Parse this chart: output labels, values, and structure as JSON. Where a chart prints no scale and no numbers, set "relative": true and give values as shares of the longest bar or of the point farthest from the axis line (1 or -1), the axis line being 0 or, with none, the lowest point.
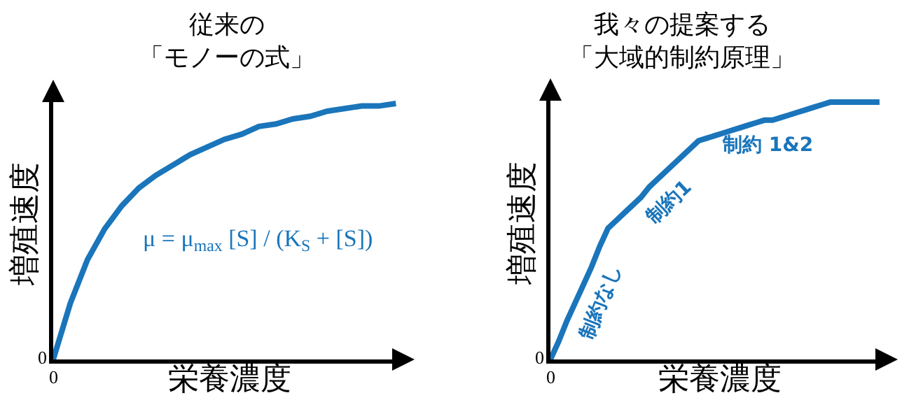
{
  "chart_data": [
    {
      "type": "line",
      "relative": true,
      "title": "従来の「モノーの式」",
      "xlabel": "栄養濃度",
      "ylabel": "増殖速度",
      "color": "#1a75bb",
      "categories": [
        null,
        null,
        null,
        null,
        null,
        null,
        null,
        null,
        null,
        null,
        null,
        null,
        null,
        null,
        null,
        null,
        null,
        null,
        null,
        null,
        null
      ],
      "values": [
        0,
        0.22,
        0.39,
        0.51,
        0.6,
        0.67,
        0.72,
        0.76,
        0.8,
        0.83,
        0.86,
        0.88,
        0.91,
        0.92,
        0.94,
        0.95,
        0.97,
        0.98,
        0.99,
        0.99,
        1.0
      ],
      "annotations": [
        "0",
        "0",
        "μ = μ$_{max}$ [S] / (K$_{S}$ + [S])"
      ]
    },
    {
      "type": "line",
      "relative": true,
      "title": "我々の提案する「大域的制約原理」",
      "xlabel": "栄養濃度",
      "ylabel": "増殖速度",
      "color": "#1a75bb",
      "categories": [
        null,
        null,
        null,
        null,
        null,
        null,
        null,
        null,
        null,
        null,
        null,
        null,
        null,
        null,
        null,
        null,
        null,
        null,
        null,
        null,
        null,
        null,
        null,
        null,
        null,
        null,
        null,
        null,
        null,
        null,
        null,
        null,
        null,
        null,
        null,
        null,
        null,
        null,
        null,
        null,
        null
      ],
      "values": [
        0,
        0.07,
        0.15,
        0.22,
        0.29,
        0.36,
        0.44,
        0.51,
        0.54,
        0.57,
        0.6,
        0.63,
        0.67,
        0.7,
        0.73,
        0.76,
        0.79,
        0.82,
        0.85,
        0.86,
        0.87,
        0.88,
        0.89,
        0.9,
        0.91,
        0.92,
        0.93,
        0.93,
        0.94,
        0.95,
        0.96,
        0.97,
        0.98,
        0.99,
        1.0,
        1.0,
        1.0,
        1.0,
        1.0,
        1.0,
        1.0
      ],
      "annotations": [
        "0",
        "0",
        "制約なし",
        "制約1",
        "制約 1&2"
      ]
    }
  ]
}
